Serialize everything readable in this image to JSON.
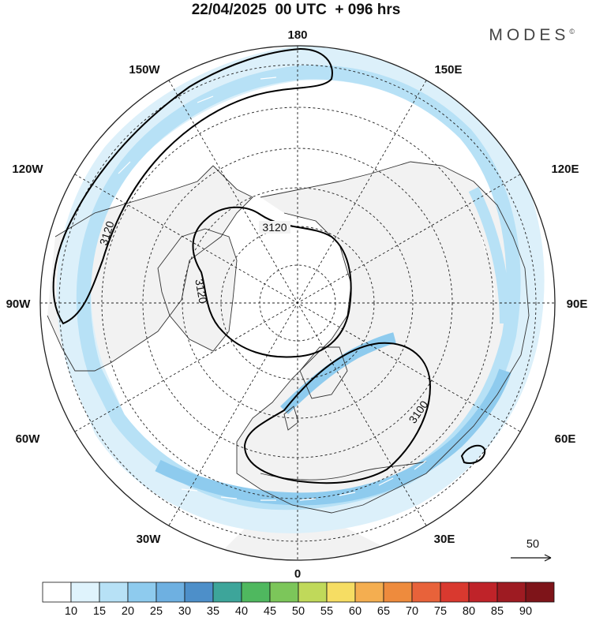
{
  "title": "22/04/2025  00 UTC  + 096 hrs",
  "brand": "MODES",
  "brand_mark": "©",
  "longitude_labels": {
    "n": "180",
    "s": "0",
    "w": "90W",
    "e": "90E",
    "nw1": "150W",
    "nw2": "120W",
    "sw1": "60W",
    "sw2": "30W",
    "ne1": "150E",
    "ne2": "120E",
    "se1": "60E",
    "se2": "30E"
  },
  "contour_labels": {
    "c1": "3120",
    "c2": "3120",
    "c3": "3120",
    "c4": "3100"
  },
  "wind_reference": "50",
  "colorbar": {
    "ticks": [
      "10",
      "15",
      "20",
      "25",
      "30",
      "35",
      "40",
      "45",
      "50",
      "55",
      "60",
      "65",
      "70",
      "75",
      "80",
      "85",
      "90"
    ],
    "colors": [
      "#ffffff",
      "#dff3fc",
      "#b7e1f6",
      "#8ecbee",
      "#6eb0e1",
      "#4d8fc9",
      "#3da59a",
      "#4fb85f",
      "#7cc65a",
      "#c0d95a",
      "#f6dd63",
      "#f4ae50",
      "#ee8b3d",
      "#e8623a",
      "#d9392f",
      "#bf2329",
      "#9e1b22",
      "#7e1419"
    ]
  },
  "colors": {
    "land": "#f2f2f2",
    "coast": "#333333",
    "jet_light": "#cfe9f8",
    "jet_mid": "#a9d6f2",
    "jet_strong": "#86c2ea"
  }
}
